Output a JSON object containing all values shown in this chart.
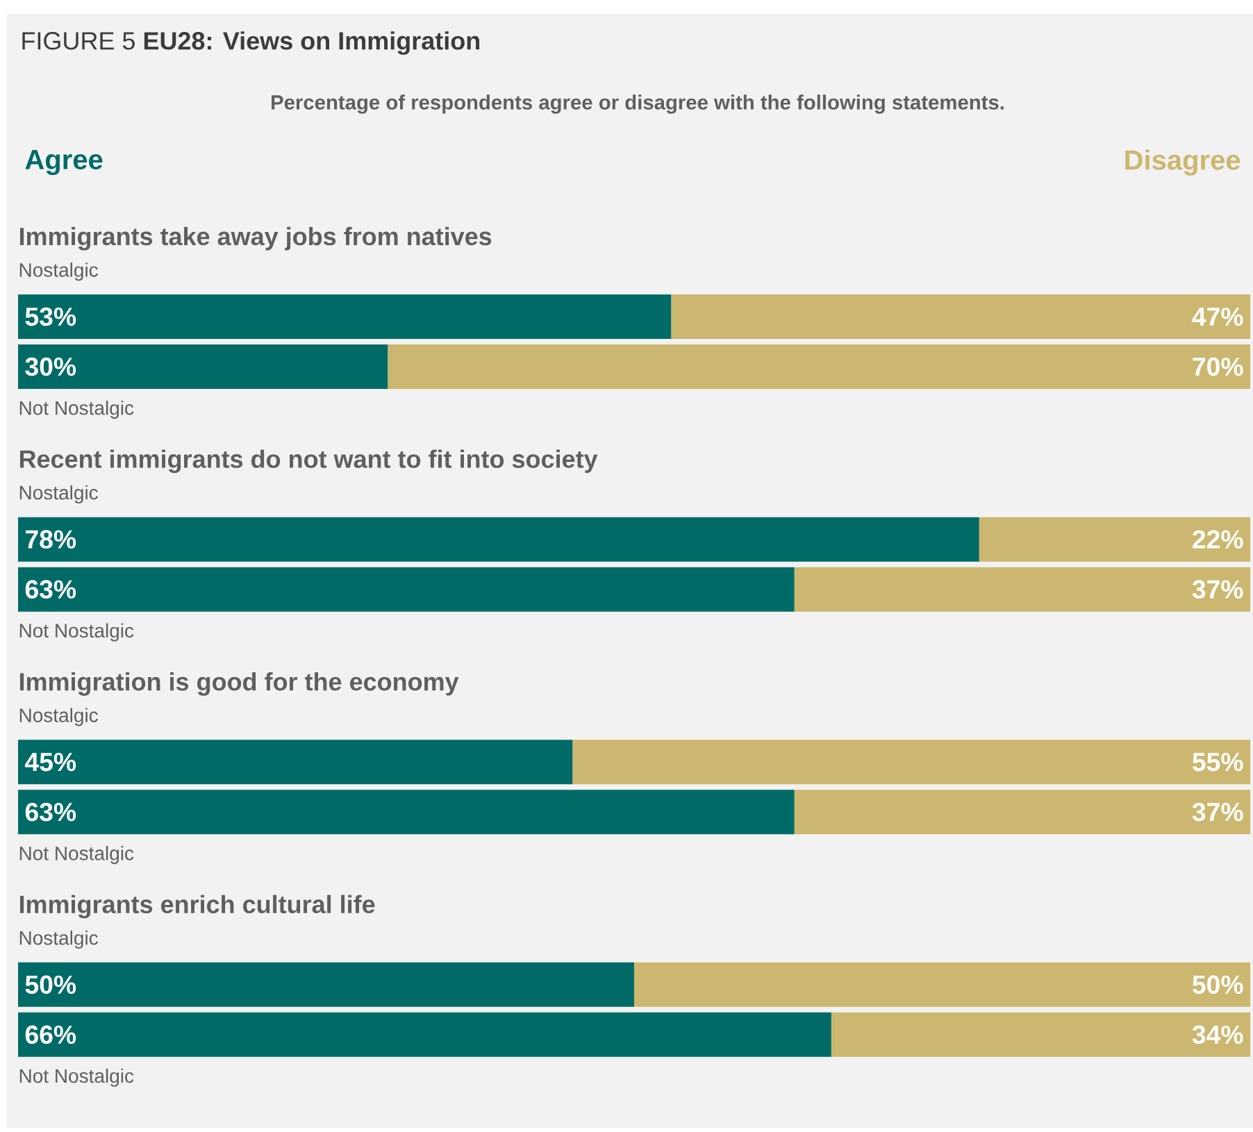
{
  "chart_data": {
    "type": "bar",
    "orientation": "horizontal",
    "stacked": true,
    "title": "FIGURE 5 **EU28: Views on Immigration**",
    "subtitle": "Percentage of respondents agree or disagree with the following statements.",
    "categories": [
      "Nostalgic",
      "Not Nostalgic",
      "Nostalgic",
      "Not Nostalgic",
      "Nostalgic",
      "Not Nostalgic",
      "Nostalgic",
      "Not Nostalgic"
    ],
    "annotations": [
      "Immigrants take away jobs from natives",
      "Recent immigrants do not want to fit into society",
      "Immigration is good for the economy",
      "Immigrants enrich cultural life"
    ],
    "series": [
      {
        "name": "Agree",
        "color": "#006b66",
        "values": [
          53,
          30,
          78,
          63,
          45,
          63,
          50,
          66
        ],
        "value_labels": [
          "53%",
          "30%",
          "78%",
          "63%",
          "45%",
          "63%",
          "50%",
          "66%"
        ]
      },
      {
        "name": "Disagree",
        "color": "#cbb76f",
        "values": [
          47,
          70,
          22,
          37,
          55,
          37,
          50,
          34
        ],
        "value_labels": [
          "47%",
          "70%",
          "22%",
          "37%",
          "55%",
          "37%",
          "50%",
          "34%"
        ]
      }
    ],
    "xlim": [
      0,
      100
    ],
    "tick_labels": false,
    "legend": "top"
  }
}
